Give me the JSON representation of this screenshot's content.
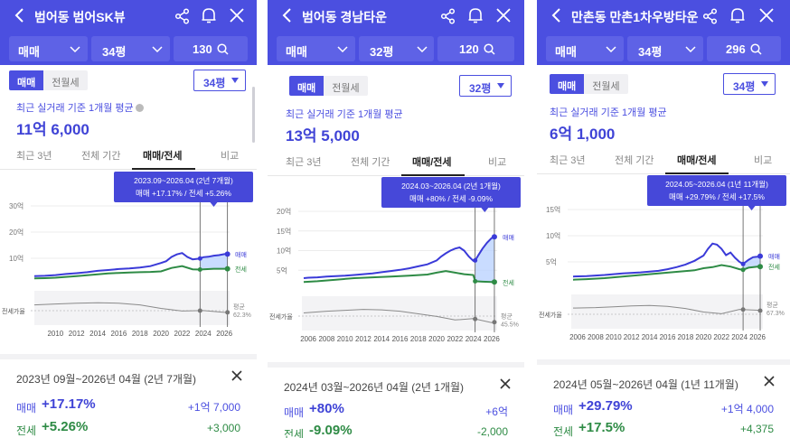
{
  "common": {
    "trade_label": "매매",
    "jeonse_label": "전월세",
    "avg_label": "최근 실거래 기준 1개월 평균",
    "tabs": [
      "최근 3년",
      "전체 기간",
      "매매/전세",
      "비교"
    ],
    "legend_trade": "매매",
    "legend_jeonse": "전세",
    "legend_ratio": "전세가율",
    "avg_word": "평균",
    "sum_trade_label": "매매",
    "sum_jeonse_label": "전세",
    "colors": {
      "accent": "#4b4fe0",
      "trade_line": "#3a3ad8",
      "jeonse_line": "#2e8b45",
      "ratio_line": "#8a8a8a",
      "highlight": "#bcd3ff"
    }
  },
  "panels": [
    {
      "title": "범어동 범어SK뷰",
      "filter_type": "매매",
      "filter_size": "34평",
      "search_count": "130",
      "size_select": "34평",
      "avg_price": "11억 6,000",
      "tooltip_range": "2023.09~2026.04 (2년 7개월)",
      "tooltip_change": "매매 +17.17%  /  전세 +5.26%",
      "ratio_avg": "62.3%",
      "summary_range": "2023년 09월~2026년 04월 (2년 7개월)",
      "trade_pct": "+17.17%",
      "trade_amt": "+1억 7,000",
      "jeonse_pct": "+5.26%",
      "jeonse_amt": "+3,000",
      "chart_data": {
        "type": "line",
        "x_ticks": [
          "2010",
          "2012",
          "2014",
          "2016",
          "2018",
          "2020",
          "2022",
          "2024",
          "2026"
        ],
        "y_ticks": [
          "30억",
          "20억",
          "10억",
          "0"
        ],
        "ylim": [
          0,
          30
        ],
        "xlim": [
          2008,
          2026.5
        ],
        "highlight_range": [
          2023.7,
          2026.3
        ],
        "series": [
          {
            "name": "매매",
            "x": [
              2008,
              2009,
              2010,
              2011,
              2012,
              2013,
              2014,
              2015,
              2016,
              2017,
              2018,
              2019,
              2020,
              2020.5,
              2021,
              2021.5,
              2022,
              2022.5,
              2023,
              2023.7,
              2024,
              2024.5,
              2025,
              2025.5,
              2026,
              2026.3
            ],
            "values": [
              3.2,
              3.3,
              3.6,
              4.0,
              4.3,
              4.7,
              5.2,
              5.5,
              5.9,
              6.1,
              6.5,
              7.0,
              8.2,
              8.9,
              10.5,
              11.5,
              12.0,
              10.5,
              9.6,
              9.9,
              10.4,
              10.6,
              11.0,
              11.2,
              11.6,
              11.6
            ]
          },
          {
            "name": "전세",
            "x": [
              2008,
              2009,
              2010,
              2011,
              2012,
              2013,
              2014,
              2015,
              2016,
              2017,
              2018,
              2019,
              2020,
              2021,
              2022,
              2023,
              2023.7,
              2024,
              2025,
              2026,
              2026.3
            ],
            "values": [
              2.3,
              2.4,
              2.6,
              2.9,
              3.2,
              3.5,
              3.9,
              4.2,
              4.4,
              4.6,
              4.7,
              4.8,
              5.0,
              6.3,
              7.0,
              5.8,
              5.7,
              5.8,
              6.0,
              6.0,
              6.0
            ]
          }
        ],
        "ratio_series": {
          "name": "전세가율",
          "x": [
            2008,
            2010,
            2012,
            2014,
            2016,
            2018,
            2020,
            2022,
            2024,
            2026,
            2026.3
          ],
          "values": [
            72,
            74,
            76,
            77,
            76,
            72,
            64,
            58,
            59,
            55,
            55
          ]
        }
      }
    },
    {
      "title": "범어동 경남타운",
      "filter_type": "매매",
      "filter_size": "32평",
      "search_count": "120",
      "size_select": "32평",
      "avg_price": "13억 5,000",
      "tooltip_range": "2024.03~2026.04 (2년 1개월)",
      "tooltip_change": "매매 +80%  /  전세 -9.09%",
      "ratio_avg": "45.5%",
      "summary_range": "2024년 03월~2026년 04월 (2년 1개월)",
      "trade_pct": "+80%",
      "trade_amt": "+6억",
      "jeonse_pct": "-9.09%",
      "jeonse_amt": "-2,000",
      "chart_data": {
        "type": "line",
        "x_ticks": [
          "2006",
          "2008",
          "2010",
          "2012",
          "2014",
          "2016",
          "2018",
          "2020",
          "2022",
          "2024",
          "2026"
        ],
        "y_ticks": [
          "20억",
          "15억",
          "10억",
          "5억",
          "0"
        ],
        "ylim": [
          0,
          20
        ],
        "xlim": [
          2005.3,
          2026.6
        ],
        "highlight_range": [
          2024.2,
          2026.3
        ],
        "series": [
          {
            "name": "매매",
            "x": [
              2005.5,
              2006,
              2007,
              2008,
              2009,
              2010,
              2011,
              2012,
              2013,
              2014,
              2015,
              2016,
              2017,
              2018,
              2019,
              2020,
              2020.5,
              2021,
              2021.5,
              2022,
              2022.5,
              2023,
              2023.5,
              2024,
              2024.2,
              2024.6,
              2025,
              2025.5,
              2026,
              2026.3
            ],
            "values": [
              3.0,
              3.1,
              3.2,
              3.4,
              3.5,
              3.6,
              3.8,
              4.0,
              4.2,
              4.5,
              4.8,
              5.1,
              5.5,
              6.0,
              6.5,
              7.5,
              8.5,
              9.3,
              10.0,
              10.5,
              10.8,
              10.0,
              8.5,
              7.4,
              7.5,
              9.0,
              10.5,
              12.0,
              13.2,
              13.5
            ]
          },
          {
            "name": "전세",
            "x": [
              2005.5,
              2007,
              2009,
              2011,
              2013,
              2015,
              2017,
              2019,
              2020,
              2021,
              2022,
              2023,
              2024,
              2024.2,
              2025,
              2026,
              2026.3
            ],
            "values": [
              2.0,
              2.2,
              2.6,
              3.0,
              3.2,
              3.4,
              3.6,
              3.9,
              4.4,
              4.8,
              4.4,
              4.0,
              3.8,
              2.2,
              2.1,
              2.0,
              2.0
            ]
          }
        ],
        "ratio_series": {
          "name": "전세가율",
          "x": [
            2005.5,
            2008,
            2010,
            2012,
            2014,
            2016,
            2018,
            2020,
            2022,
            2024,
            2026,
            2026.3
          ],
          "values": [
            66,
            70,
            72,
            74,
            73,
            70,
            64,
            58,
            50,
            53,
            44,
            45
          ]
        }
      }
    },
    {
      "title": "만촌동 만촌1차우방타운",
      "filter_type": "매매",
      "filter_size": "34평",
      "search_count": "296",
      "size_select": "34평",
      "avg_price": "6억 1,000",
      "tooltip_range": "2024.05~2026.04 (1년 11개월)",
      "tooltip_change": "매매 +29.79%  /  전세 +17.5%",
      "ratio_avg": "67.3%",
      "summary_range": "2024년 05월~2026년 04월 (1년 11개월)",
      "trade_pct": "+29.79%",
      "trade_amt": "+1억 4,000",
      "jeonse_pct": "+17.5%",
      "jeonse_amt": "+4,375",
      "chart_data": {
        "type": "line",
        "x_ticks": [
          "2006",
          "2008",
          "2010",
          "2012",
          "2014",
          "2016",
          "2018",
          "2020",
          "2022",
          "2024",
          "2026"
        ],
        "y_ticks": [
          "15억",
          "10억",
          "5억",
          "0"
        ],
        "ylim": [
          0,
          15
        ],
        "xlim": [
          2005.3,
          2026.6
        ],
        "highlight_range": [
          2024.4,
          2026.3
        ],
        "series": [
          {
            "name": "매매",
            "x": [
              2005.5,
              2007,
              2009,
              2011,
              2013,
              2015,
              2016,
              2017,
              2018,
              2019,
              2020,
              2020.5,
              2021,
              2021.5,
              2022,
              2022.5,
              2023,
              2023.5,
              2024,
              2024.4,
              2025,
              2025.5,
              2026,
              2026.3
            ],
            "values": [
              2.2,
              2.3,
              2.5,
              2.8,
              3.0,
              3.3,
              3.6,
              4.0,
              4.5,
              5.2,
              6.2,
              7.5,
              8.5,
              8.3,
              7.5,
              6.3,
              6.8,
              5.8,
              5.0,
              4.6,
              5.4,
              5.9,
              6.0,
              6.1
            ]
          },
          {
            "name": "전세",
            "x": [
              2005.5,
              2007,
              2009,
              2011,
              2013,
              2015,
              2017,
              2019,
              2020,
              2021,
              2022,
              2023,
              2024,
              2024.4,
              2025,
              2026,
              2026.3
            ],
            "values": [
              1.6,
              1.7,
              1.9,
              2.2,
              2.5,
              2.8,
              3.1,
              3.4,
              3.8,
              4.0,
              4.4,
              4.1,
              3.6,
              3.5,
              3.9,
              4.1,
              4.1
            ]
          }
        ],
        "ratio_series": {
          "name": "전세가율",
          "x": [
            2005.5,
            2008,
            2010,
            2012,
            2014,
            2016,
            2018,
            2020,
            2022,
            2024,
            2026,
            2026.3
          ],
          "values": [
            73,
            74,
            76,
            78,
            79,
            77,
            72,
            64,
            60,
            70,
            68,
            67
          ]
        }
      }
    }
  ]
}
